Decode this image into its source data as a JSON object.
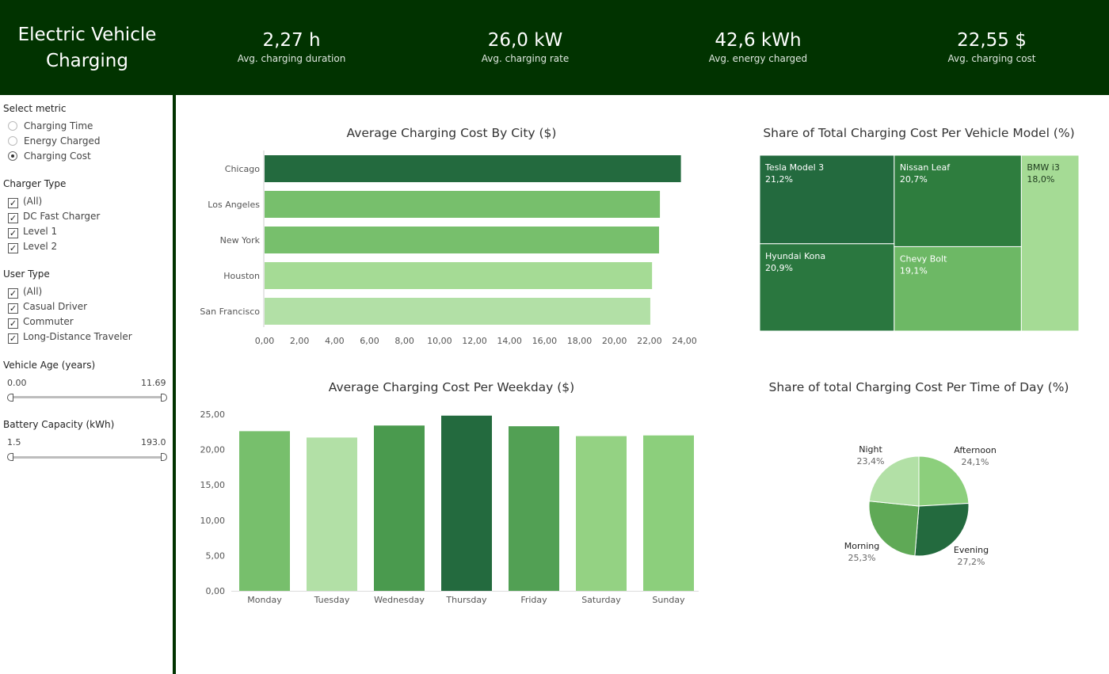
{
  "header": {
    "title_line1": "Electric Vehicle",
    "title_line2": "Charging",
    "kpis": [
      {
        "value": "2,27 h",
        "label": "Avg. charging duration"
      },
      {
        "value": "26,0 kW",
        "label": "Avg. charging rate"
      },
      {
        "value": "42,6 kWh",
        "label": "Avg. energy charged"
      },
      {
        "value": "22,55 $",
        "label": "Avg. charging cost"
      }
    ]
  },
  "sidebar": {
    "metric": {
      "title": "Select metric",
      "options": [
        "Charging Time",
        "Energy Charged",
        "Charging Cost"
      ],
      "selected": "Charging Cost"
    },
    "charger_type": {
      "title": "Charger Type",
      "options": [
        "(All)",
        "DC Fast Charger",
        "Level 1",
        "Level 2"
      ]
    },
    "user_type": {
      "title": "User Type",
      "options": [
        "(All)",
        "Casual Driver",
        "Commuter",
        "Long-Distance Traveler"
      ]
    },
    "vehicle_age": {
      "title": "Vehicle Age (years)",
      "min": "0.00",
      "max": "11.69"
    },
    "battery_capacity": {
      "title": "Battery Capacity (kWh)",
      "min": "1.5",
      "max": "193.0"
    }
  },
  "colors": {
    "header_bg": "#013300",
    "darkest": "#236a3e",
    "dark": "#2e7d3e",
    "medium_dark": "#4a9a4e",
    "medium": "#6dba66",
    "light": "#8ccf7c",
    "lighter": "#a5db95",
    "lightest": "#b2e0a6"
  },
  "chart_data": [
    {
      "type": "bar",
      "orientation": "horizontal",
      "title": "Average Charging Cost By City ($)",
      "categories": [
        "Chicago",
        "Los Angeles",
        "New York",
        "Houston",
        "San Francisco"
      ],
      "values": [
        23.8,
        22.6,
        22.55,
        22.15,
        22.05
      ],
      "colors": [
        "#236a3e",
        "#77bf6c",
        "#77bf6c",
        "#a5db95",
        "#b2e0a6"
      ],
      "xlim": [
        0,
        24
      ],
      "x_ticks": [
        "0,00",
        "2,00",
        "4,00",
        "6,00",
        "8,00",
        "10,00",
        "12,00",
        "14,00",
        "16,00",
        "18,00",
        "20,00",
        "22,00",
        "24,00"
      ]
    },
    {
      "type": "treemap",
      "title": "Share of Total Charging Cost Per Vehicle Model (%)",
      "items": [
        {
          "name": "Tesla Model 3",
          "label": "21,2%",
          "value": 21.2,
          "color": "#236a3e"
        },
        {
          "name": "Hyundai Kona",
          "label": "20,9%",
          "value": 20.9,
          "color": "#2a773f"
        },
        {
          "name": "Nissan Leaf",
          "label": "20,7%",
          "value": 20.7,
          "color": "#2e7d3e"
        },
        {
          "name": "Chevy Bolt",
          "label": "19,1%",
          "value": 19.1,
          "color": "#6db865"
        },
        {
          "name": "BMW i3",
          "label": "18,0%",
          "value": 18.0,
          "color": "#a5db95"
        }
      ]
    },
    {
      "type": "bar",
      "orientation": "vertical",
      "title": "Average Charging Cost Per Weekday ($)",
      "categories": [
        "Monday",
        "Tuesday",
        "Wednesday",
        "Thursday",
        "Friday",
        "Saturday",
        "Sunday"
      ],
      "values": [
        22.6,
        21.7,
        23.4,
        24.8,
        23.3,
        21.9,
        22.0
      ],
      "colors": [
        "#77bf6c",
        "#b2e0a6",
        "#4a9a4e",
        "#236a3e",
        "#52a054",
        "#94d283",
        "#8ccf7c"
      ],
      "ylim": [
        0,
        25
      ],
      "y_ticks": [
        "0,00",
        "5,00",
        "10,00",
        "15,00",
        "20,00",
        "25,00"
      ]
    },
    {
      "type": "pie",
      "title": "Share of total Charging Cost Per Time of Day (%)",
      "slices": [
        {
          "name": "Afternoon",
          "label": "24,1%",
          "value": 24.1,
          "color": "#8ccf7c"
        },
        {
          "name": "Evening",
          "label": "27,2%",
          "value": 27.2,
          "color": "#236a3e"
        },
        {
          "name": "Morning",
          "label": "25,3%",
          "value": 25.3,
          "color": "#5fa956"
        },
        {
          "name": "Night",
          "label": "23,4%",
          "value": 23.4,
          "color": "#b2e0a6"
        }
      ]
    }
  ]
}
